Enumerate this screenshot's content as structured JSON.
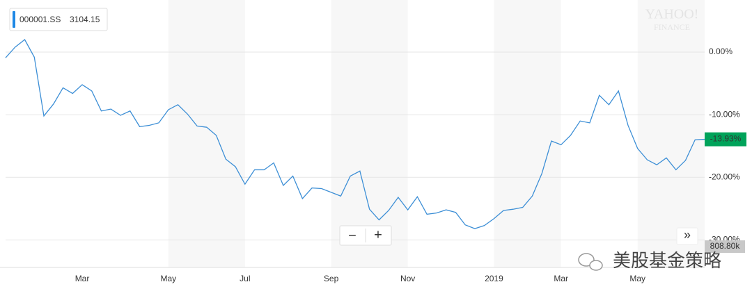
{
  "chart_data": {
    "type": "line",
    "categories": [
      null,
      null,
      null,
      null,
      null,
      null,
      null,
      null,
      "Mar",
      null,
      null,
      null,
      null,
      null,
      null,
      null,
      null,
      "May",
      null,
      null,
      null,
      null,
      null,
      null,
      null,
      "Jul",
      null,
      null,
      null,
      null,
      null,
      null,
      null,
      null,
      "Sep",
      null,
      null,
      null,
      null,
      null,
      null,
      null,
      "Nov",
      null,
      null,
      null,
      null,
      null,
      null,
      null,
      null,
      "2019",
      null,
      null,
      null,
      null,
      null,
      null,
      "Mar",
      null,
      null,
      null,
      null,
      null,
      null,
      null,
      "May",
      null,
      null,
      null,
      null,
      null,
      null,
      null
    ],
    "series": [
      {
        "name": "000001.SS",
        "color": "#3d8fd6",
        "values": [
          -0.9,
          0.8,
          2.0,
          -0.8,
          -10.2,
          -8.3,
          -5.7,
          -6.6,
          -5.2,
          -6.2,
          -9.4,
          -9.1,
          -10.1,
          -9.4,
          -11.9,
          -11.7,
          -11.3,
          -9.2,
          -8.4,
          -9.9,
          -11.8,
          -12.0,
          -13.3,
          -17.1,
          -18.3,
          -21.1,
          -18.8,
          -18.8,
          -17.7,
          -21.3,
          -19.8,
          -23.4,
          -21.7,
          -21.8,
          -22.4,
          -23.0,
          -19.8,
          -19.0,
          -25.1,
          -26.8,
          -25.3,
          -23.2,
          -25.2,
          -23.1,
          -25.9,
          -25.7,
          -25.2,
          -25.6,
          -27.6,
          -28.2,
          -27.7,
          -26.6,
          -25.3,
          -25.1,
          -24.8,
          -23.0,
          -19.4,
          -14.2,
          -14.8,
          -13.3,
          -11.0,
          -11.3,
          -6.9,
          -8.4,
          -6.2,
          -11.7,
          -15.4,
          -17.2,
          -18.0,
          -16.9,
          -18.8,
          -17.3,
          -14.0,
          -13.93
        ]
      }
    ],
    "price": "3104.15",
    "last_value_label": "-13.93%",
    "volume_label": "808.80k",
    "ylim": [
      -34.4,
      8.33
    ],
    "yticks": [
      {
        "value": 0,
        "label": "0.00%"
      },
      {
        "value": -10,
        "label": "-10.00%"
      },
      {
        "value": -20,
        "label": "-20.00%"
      },
      {
        "value": -30,
        "label": "-30.00%"
      }
    ],
    "grid": true
  },
  "ui": {
    "brand": "YAHOO!",
    "brand_sub": "FINANCE",
    "zoom_out": "−",
    "zoom_in": "+",
    "more": "»",
    "watermark": "美股基金策略"
  }
}
